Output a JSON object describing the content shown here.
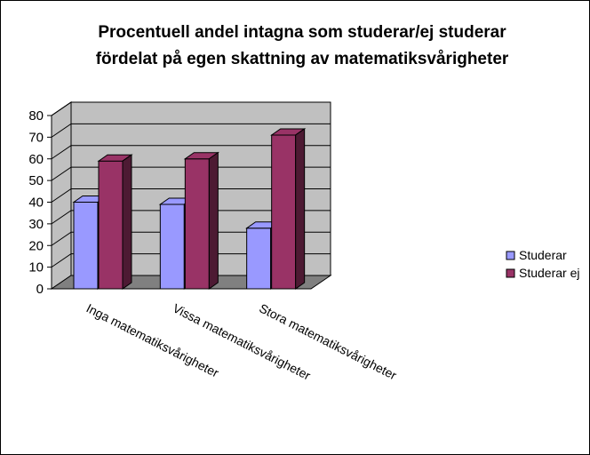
{
  "chart_data": {
    "type": "bar",
    "title_line1": "Procentuell andel intagna som studerar/ej studerar",
    "title_line2": "fördelat på egen skattning av matematiksvårigheter",
    "categories": [
      "Inga matematiksvårigheter",
      "Vissa matematiksvårigheter",
      "Stora matematiksvårigheter"
    ],
    "series": [
      {
        "name": "Studerar",
        "values": [
          40,
          39,
          28
        ],
        "color": "#9999ff"
      },
      {
        "name": "Studerar ej",
        "values": [
          59,
          60,
          71
        ],
        "color": "#993366"
      }
    ],
    "yticks": [
      "0",
      "10",
      "20",
      "30",
      "40",
      "50",
      "60",
      "70",
      "80"
    ],
    "ylim": [
      0,
      80
    ],
    "grid": true,
    "legend_position": "right",
    "wall_color": "#c0c0c0",
    "floor_color": "#808080"
  }
}
